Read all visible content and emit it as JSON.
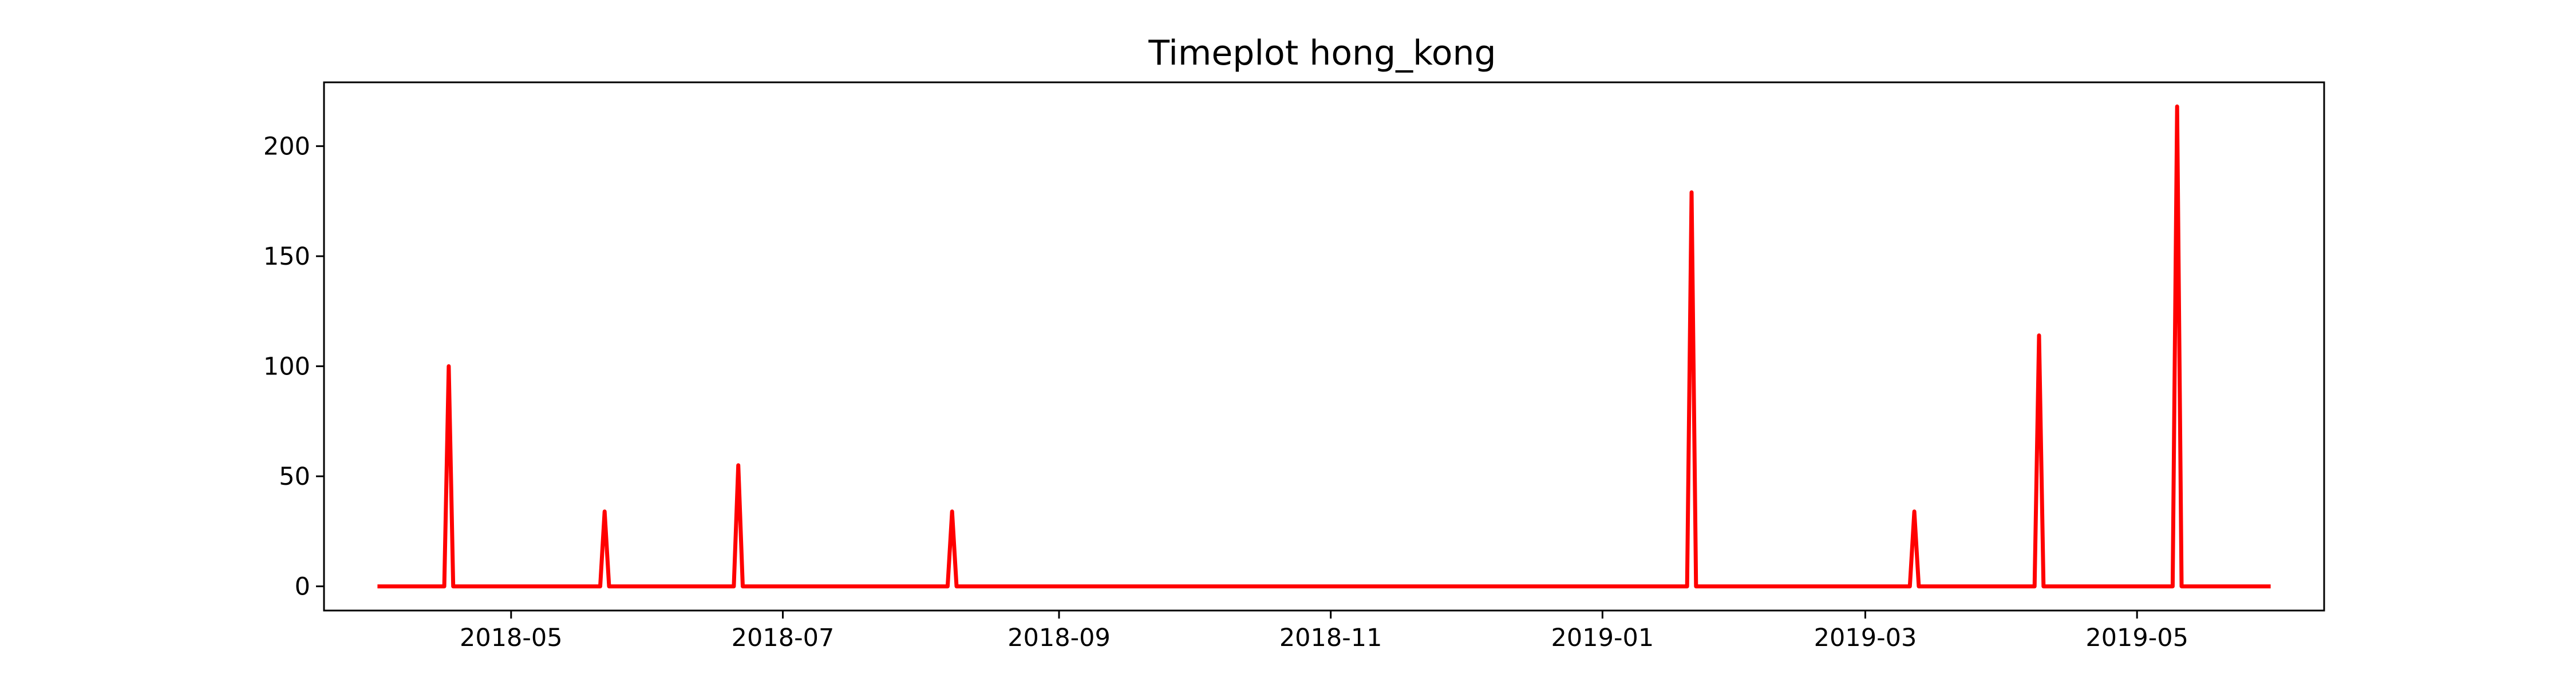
{
  "chart_data": {
    "type": "line",
    "title": "Timeplot hong_kong",
    "xlabel": "",
    "ylabel": "",
    "x_range": [
      "2018-03-20",
      "2019-06-12"
    ],
    "ylim": [
      -11,
      229
    ],
    "x_ticks": [
      "2018-05",
      "2018-07",
      "2018-09",
      "2018-11",
      "2019-01",
      "2019-03",
      "2019-05"
    ],
    "y_ticks": [
      0,
      50,
      100,
      150,
      200
    ],
    "grid": false,
    "legend": "none",
    "series": [
      {
        "color": "#ff0000",
        "points": [
          [
            "2018-04-01",
            0
          ],
          [
            "2018-04-16",
            0
          ],
          [
            "2018-04-17",
            100
          ],
          [
            "2018-04-18",
            0
          ],
          [
            "2018-05-21",
            0
          ],
          [
            "2018-05-22",
            34
          ],
          [
            "2018-05-23",
            0
          ],
          [
            "2018-06-20",
            0
          ],
          [
            "2018-06-21",
            55
          ],
          [
            "2018-06-22",
            0
          ],
          [
            "2018-08-07",
            0
          ],
          [
            "2018-08-08",
            34
          ],
          [
            "2018-08-09",
            0
          ],
          [
            "2019-01-20",
            0
          ],
          [
            "2019-01-21",
            179
          ],
          [
            "2019-01-22",
            0
          ],
          [
            "2019-03-11",
            0
          ],
          [
            "2019-03-12",
            34
          ],
          [
            "2019-03-13",
            0
          ],
          [
            "2019-04-08",
            0
          ],
          [
            "2019-04-09",
            114
          ],
          [
            "2019-04-10",
            0
          ],
          [
            "2019-05-09",
            0
          ],
          [
            "2019-05-10",
            218
          ],
          [
            "2019-05-11",
            0
          ],
          [
            "2019-05-31",
            0
          ]
        ]
      }
    ]
  }
}
